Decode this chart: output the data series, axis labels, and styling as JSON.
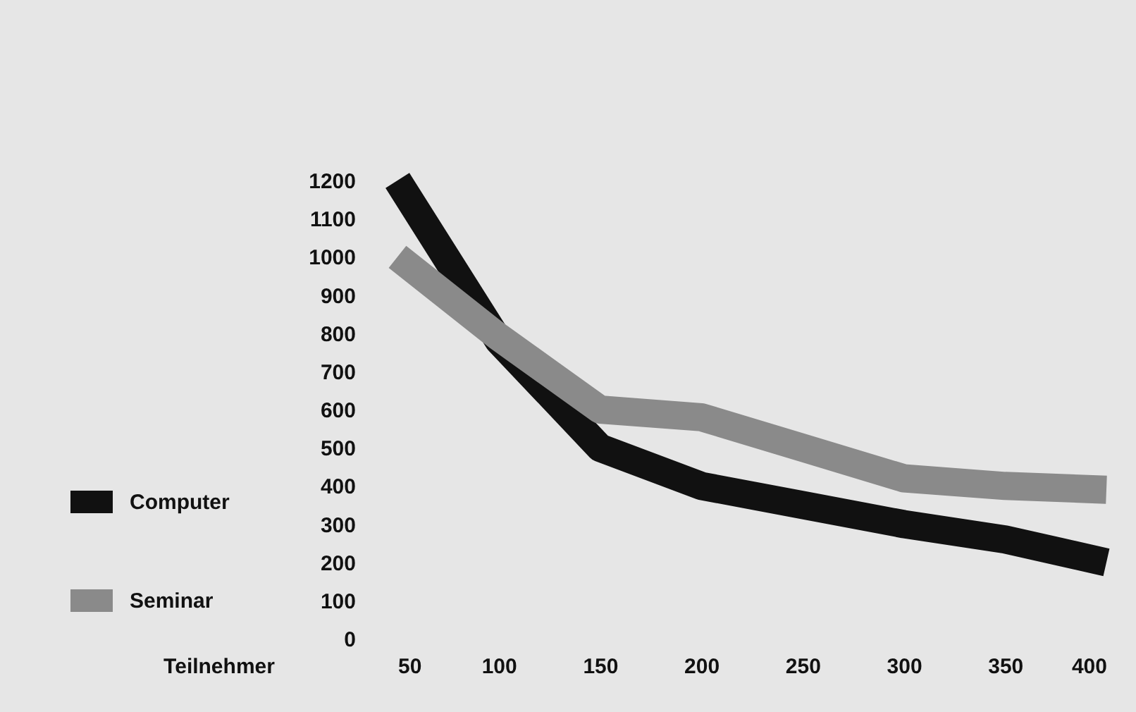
{
  "chart_data": {
    "type": "line",
    "xlabel": "Teilnehmer",
    "x": [
      50,
      100,
      150,
      200,
      250,
      300,
      350,
      400
    ],
    "series": [
      {
        "name": "Computer",
        "color": "#111111",
        "values": [
          1200,
          780,
          500,
          400,
          350,
          300,
          260,
          200
        ]
      },
      {
        "name": "Seminar",
        "color": "#8a8a8a",
        "values": [
          1000,
          790,
          600,
          580,
          500,
          420,
          400,
          390
        ]
      }
    ],
    "xlim": [
      50,
      400
    ],
    "xticks": [
      50,
      100,
      150,
      200,
      250,
      300,
      350,
      400
    ],
    "ylim": [
      0,
      1200
    ],
    "yticks": [
      0,
      100,
      200,
      300,
      400,
      500,
      600,
      700,
      800,
      900,
      1000,
      1100,
      1200
    ],
    "grid": false,
    "legend": "left",
    "marker": "none",
    "line_style": "solid"
  }
}
